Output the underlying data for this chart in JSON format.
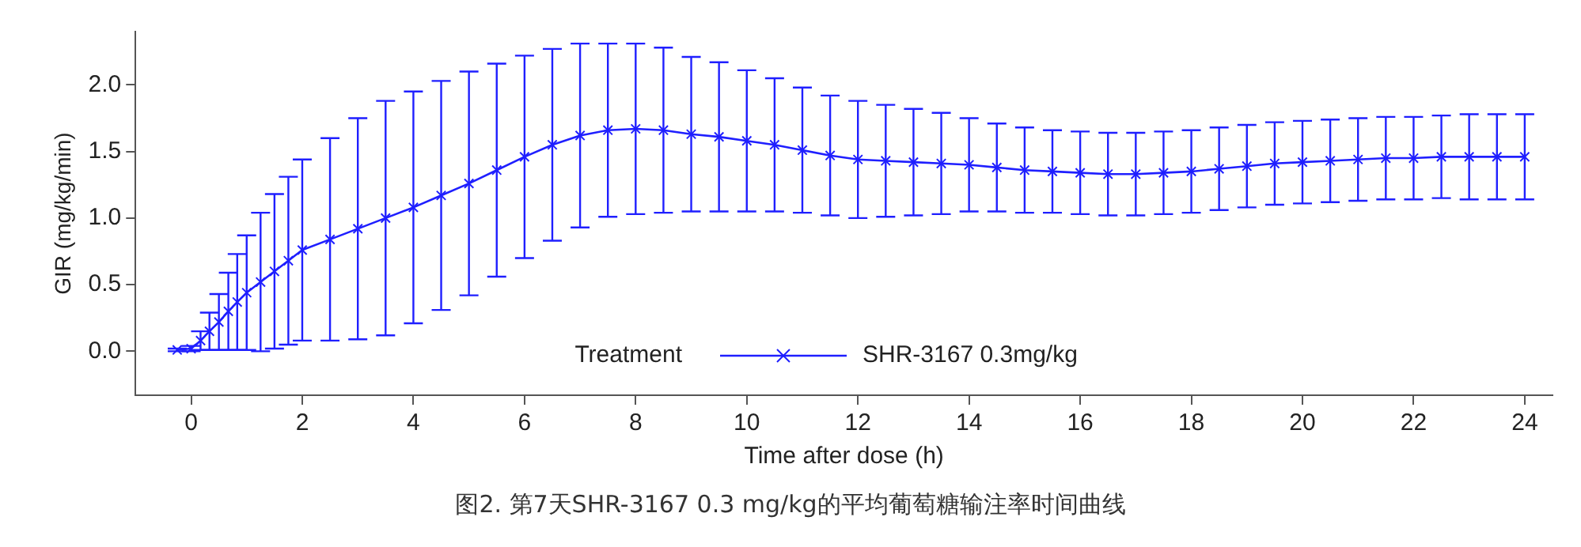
{
  "chart_data": {
    "type": "line",
    "xlabel": "Time after dose (h)",
    "ylabel": "GIR (mg/kg/min)",
    "legend_title": "Treatment",
    "legend": "bottom",
    "grid": false,
    "marker": "cross",
    "line_style": "solid",
    "annotations": [
      "图2. 第7天SHR-3167 0.3 mg/kg的平均葡萄糖输注率时间曲线"
    ],
    "xlim": [
      -1,
      24.5
    ],
    "xticks": [
      0,
      2,
      4,
      6,
      8,
      10,
      12,
      14,
      16,
      18,
      20,
      22,
      24
    ],
    "ylim": [
      -0.33,
      2.4
    ],
    "yticks": [
      {
        "value": 0,
        "label": "0.0"
      },
      {
        "value": 0.5,
        "label": "0.5"
      },
      {
        "value": 1,
        "label": "1.0"
      },
      {
        "value": 1.5,
        "label": "1.5"
      },
      {
        "value": 2,
        "label": "2.0"
      }
    ],
    "series": [
      {
        "name": "SHR-3167 0.3mg/kg",
        "color": "#1f1fff",
        "x": [
          -0.25,
          0,
          0.17,
          0.33,
          0.5,
          0.67,
          0.83,
          1,
          1.25,
          1.5,
          1.75,
          2,
          2.5,
          3,
          3.5,
          4,
          4.5,
          5,
          5.5,
          6,
          6.5,
          7,
          7.5,
          8,
          8.5,
          9,
          9.5,
          10,
          10.5,
          11,
          11.5,
          12,
          12.5,
          13,
          13.5,
          14,
          14.5,
          15,
          15.5,
          16,
          16.5,
          17,
          17.5,
          18,
          18.5,
          19,
          19.5,
          20,
          20.5,
          21,
          21.5,
          22,
          22.5,
          23,
          23.5,
          24
        ],
        "values": [
          0.01,
          0.02,
          0.08,
          0.15,
          0.22,
          0.3,
          0.37,
          0.44,
          0.52,
          0.6,
          0.68,
          0.76,
          0.84,
          0.92,
          1,
          1.08,
          1.17,
          1.26,
          1.36,
          1.46,
          1.55,
          1.62,
          1.66,
          1.67,
          1.66,
          1.63,
          1.61,
          1.58,
          1.55,
          1.51,
          1.47,
          1.44,
          1.43,
          1.42,
          1.41,
          1.4,
          1.38,
          1.36,
          1.35,
          1.34,
          1.33,
          1.33,
          1.34,
          1.35,
          1.37,
          1.39,
          1.41,
          1.42,
          1.43,
          1.44,
          1.45,
          1.45,
          1.46,
          1.46,
          1.46,
          1.46
        ],
        "errors": [
          0.01,
          0.02,
          0.07,
          0.14,
          0.21,
          0.29,
          0.36,
          0.43,
          0.52,
          0.58,
          0.63,
          0.68,
          0.76,
          0.83,
          0.88,
          0.87,
          0.86,
          0.84,
          0.8,
          0.76,
          0.72,
          0.69,
          0.65,
          0.64,
          0.62,
          0.58,
          0.56,
          0.53,
          0.5,
          0.47,
          0.45,
          0.44,
          0.42,
          0.4,
          0.38,
          0.35,
          0.33,
          0.32,
          0.31,
          0.31,
          0.31,
          0.31,
          0.31,
          0.31,
          0.31,
          0.31,
          0.31,
          0.31,
          0.31,
          0.31,
          0.31,
          0.31,
          0.31,
          0.32,
          0.32,
          0.32
        ]
      }
    ]
  }
}
